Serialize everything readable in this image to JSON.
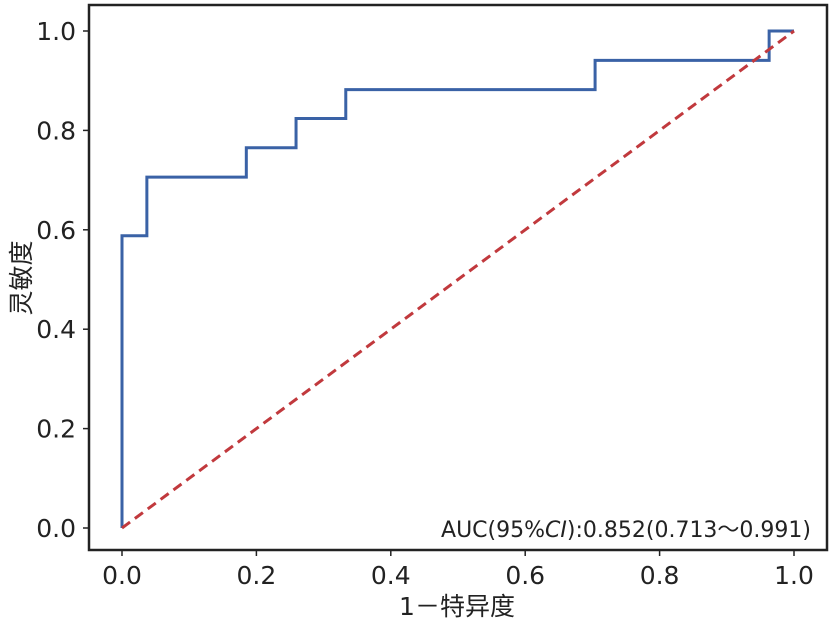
{
  "chart_data": {
    "type": "line",
    "title": "",
    "xlabel": "1－特异度",
    "ylabel": "灵敏度",
    "xlim": [
      0.0,
      1.0
    ],
    "ylim": [
      0.0,
      1.0
    ],
    "grid": false,
    "xticks": [
      "0.0",
      "0.2",
      "0.4",
      "0.6",
      "0.8",
      "1.0"
    ],
    "yticks": [
      "0.0",
      "0.2",
      "0.4",
      "0.6",
      "0.8",
      "1.0"
    ],
    "series": [
      {
        "style": "step",
        "color": "#3a62a6",
        "x": [
          0.0,
          0.0,
          0.037,
          0.037,
          0.185,
          0.185,
          0.259,
          0.259,
          0.333,
          0.333,
          0.704,
          0.704,
          0.963,
          0.963,
          1.0
        ],
        "y": [
          0.0,
          0.588,
          0.588,
          0.706,
          0.706,
          0.765,
          0.765,
          0.824,
          0.824,
          0.882,
          0.882,
          0.941,
          0.941,
          1.0,
          1.0
        ]
      },
      {
        "style": "dashed",
        "color": "#c1393d",
        "x": [
          0.0,
          1.0
        ],
        "y": [
          0.0,
          1.0
        ]
      }
    ],
    "annotation": {
      "prefix": "AUC(95%",
      "ci": "CI",
      "suffix": "):0.852(0.713～0.991)"
    }
  }
}
